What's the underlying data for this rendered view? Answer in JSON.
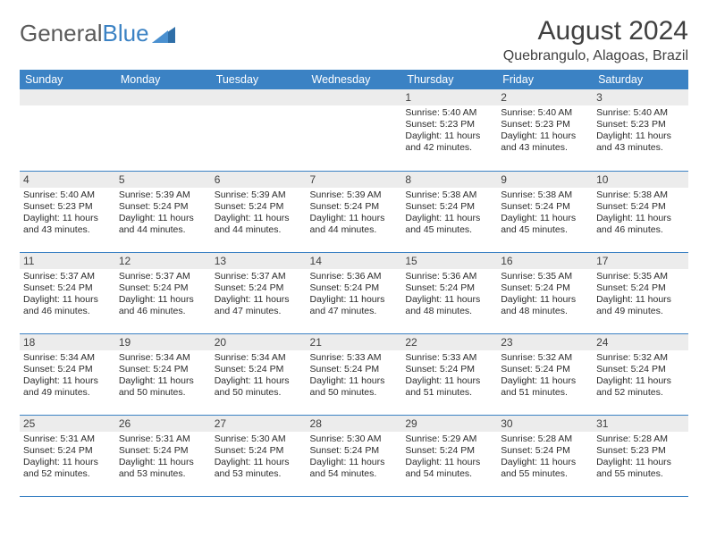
{
  "brand": {
    "part1": "General",
    "part2": "Blue"
  },
  "title": "August 2024",
  "location": "Quebrangulo, Alagoas, Brazil",
  "colors": {
    "header_bg": "#3b82c4",
    "header_text": "#ffffff",
    "daynum_bg": "#ececec",
    "text": "#404040",
    "row_border": "#3b82c4"
  },
  "dayNames": [
    "Sunday",
    "Monday",
    "Tuesday",
    "Wednesday",
    "Thursday",
    "Friday",
    "Saturday"
  ],
  "grid": [
    [
      null,
      null,
      null,
      null,
      {
        "n": "1",
        "sr": "5:40 AM",
        "ss": "5:23 PM",
        "dl": "11 hours and 42 minutes."
      },
      {
        "n": "2",
        "sr": "5:40 AM",
        "ss": "5:23 PM",
        "dl": "11 hours and 43 minutes."
      },
      {
        "n": "3",
        "sr": "5:40 AM",
        "ss": "5:23 PM",
        "dl": "11 hours and 43 minutes."
      }
    ],
    [
      {
        "n": "4",
        "sr": "5:40 AM",
        "ss": "5:23 PM",
        "dl": "11 hours and 43 minutes."
      },
      {
        "n": "5",
        "sr": "5:39 AM",
        "ss": "5:24 PM",
        "dl": "11 hours and 44 minutes."
      },
      {
        "n": "6",
        "sr": "5:39 AM",
        "ss": "5:24 PM",
        "dl": "11 hours and 44 minutes."
      },
      {
        "n": "7",
        "sr": "5:39 AM",
        "ss": "5:24 PM",
        "dl": "11 hours and 44 minutes."
      },
      {
        "n": "8",
        "sr": "5:38 AM",
        "ss": "5:24 PM",
        "dl": "11 hours and 45 minutes."
      },
      {
        "n": "9",
        "sr": "5:38 AM",
        "ss": "5:24 PM",
        "dl": "11 hours and 45 minutes."
      },
      {
        "n": "10",
        "sr": "5:38 AM",
        "ss": "5:24 PM",
        "dl": "11 hours and 46 minutes."
      }
    ],
    [
      {
        "n": "11",
        "sr": "5:37 AM",
        "ss": "5:24 PM",
        "dl": "11 hours and 46 minutes."
      },
      {
        "n": "12",
        "sr": "5:37 AM",
        "ss": "5:24 PM",
        "dl": "11 hours and 46 minutes."
      },
      {
        "n": "13",
        "sr": "5:37 AM",
        "ss": "5:24 PM",
        "dl": "11 hours and 47 minutes."
      },
      {
        "n": "14",
        "sr": "5:36 AM",
        "ss": "5:24 PM",
        "dl": "11 hours and 47 minutes."
      },
      {
        "n": "15",
        "sr": "5:36 AM",
        "ss": "5:24 PM",
        "dl": "11 hours and 48 minutes."
      },
      {
        "n": "16",
        "sr": "5:35 AM",
        "ss": "5:24 PM",
        "dl": "11 hours and 48 minutes."
      },
      {
        "n": "17",
        "sr": "5:35 AM",
        "ss": "5:24 PM",
        "dl": "11 hours and 49 minutes."
      }
    ],
    [
      {
        "n": "18",
        "sr": "5:34 AM",
        "ss": "5:24 PM",
        "dl": "11 hours and 49 minutes."
      },
      {
        "n": "19",
        "sr": "5:34 AM",
        "ss": "5:24 PM",
        "dl": "11 hours and 50 minutes."
      },
      {
        "n": "20",
        "sr": "5:34 AM",
        "ss": "5:24 PM",
        "dl": "11 hours and 50 minutes."
      },
      {
        "n": "21",
        "sr": "5:33 AM",
        "ss": "5:24 PM",
        "dl": "11 hours and 50 minutes."
      },
      {
        "n": "22",
        "sr": "5:33 AM",
        "ss": "5:24 PM",
        "dl": "11 hours and 51 minutes."
      },
      {
        "n": "23",
        "sr": "5:32 AM",
        "ss": "5:24 PM",
        "dl": "11 hours and 51 minutes."
      },
      {
        "n": "24",
        "sr": "5:32 AM",
        "ss": "5:24 PM",
        "dl": "11 hours and 52 minutes."
      }
    ],
    [
      {
        "n": "25",
        "sr": "5:31 AM",
        "ss": "5:24 PM",
        "dl": "11 hours and 52 minutes."
      },
      {
        "n": "26",
        "sr": "5:31 AM",
        "ss": "5:24 PM",
        "dl": "11 hours and 53 minutes."
      },
      {
        "n": "27",
        "sr": "5:30 AM",
        "ss": "5:24 PM",
        "dl": "11 hours and 53 minutes."
      },
      {
        "n": "28",
        "sr": "5:30 AM",
        "ss": "5:24 PM",
        "dl": "11 hours and 54 minutes."
      },
      {
        "n": "29",
        "sr": "5:29 AM",
        "ss": "5:24 PM",
        "dl": "11 hours and 54 minutes."
      },
      {
        "n": "30",
        "sr": "5:28 AM",
        "ss": "5:24 PM",
        "dl": "11 hours and 55 minutes."
      },
      {
        "n": "31",
        "sr": "5:28 AM",
        "ss": "5:23 PM",
        "dl": "11 hours and 55 minutes."
      }
    ]
  ],
  "labels": {
    "sunrise": "Sunrise:",
    "sunset": "Sunset:",
    "daylight": "Daylight:"
  }
}
